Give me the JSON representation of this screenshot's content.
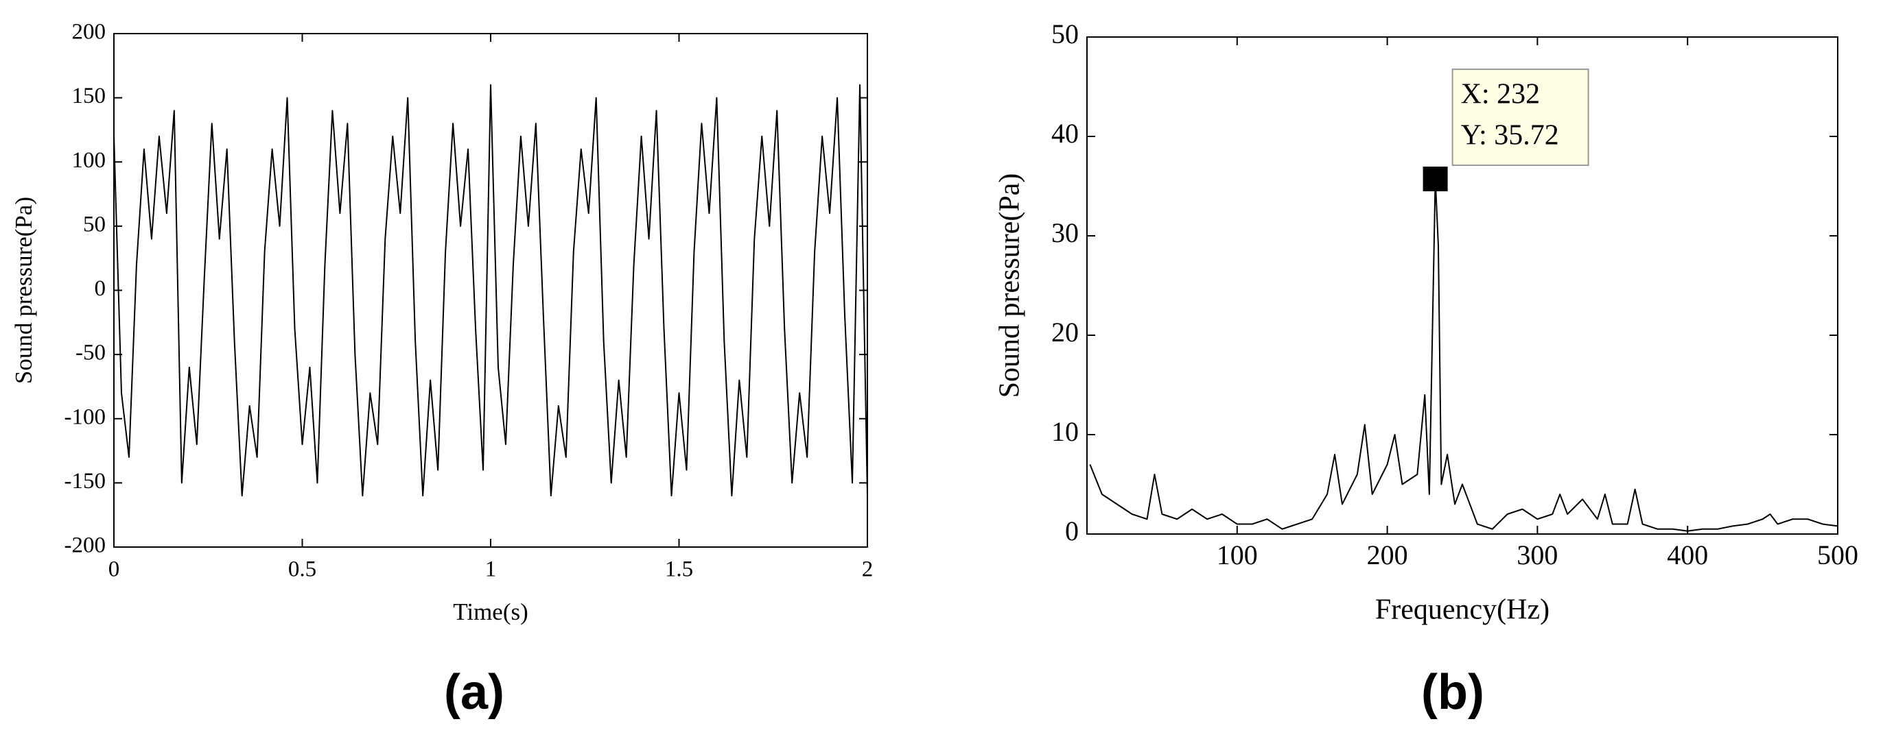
{
  "chart_data": [
    {
      "type": "line",
      "label": "(a)",
      "x_label": "Time(s)",
      "y_label": "Sound pressure(Pa)",
      "color": "#000000",
      "x": [
        0,
        0.02,
        0.04,
        0.06,
        0.08,
        0.1,
        0.12,
        0.14,
        0.16,
        0.18,
        0.2,
        0.22,
        0.24,
        0.26,
        0.28,
        0.3,
        0.32,
        0.34,
        0.36,
        0.38,
        0.4,
        0.42,
        0.44,
        0.46,
        0.48,
        0.5,
        0.52,
        0.54,
        0.56,
        0.58,
        0.6,
        0.62,
        0.64,
        0.66,
        0.68,
        0.7,
        0.72,
        0.74,
        0.76,
        0.78,
        0.8,
        0.82,
        0.84,
        0.86,
        0.88,
        0.9,
        0.92,
        0.94,
        0.96,
        0.98,
        1,
        1.02,
        1.04,
        1.06,
        1.08,
        1.1,
        1.12,
        1.14,
        1.16,
        1.18,
        1.2,
        1.22,
        1.24,
        1.26,
        1.28,
        1.3,
        1.32,
        1.34,
        1.36,
        1.38,
        1.4,
        1.42,
        1.44,
        1.46,
        1.48,
        1.5,
        1.52,
        1.54,
        1.56,
        1.58,
        1.6,
        1.62,
        1.64,
        1.66,
        1.68,
        1.7,
        1.72,
        1.74,
        1.76,
        1.78,
        1.8,
        1.82,
        1.84,
        1.86,
        1.88,
        1.9,
        1.92,
        1.94,
        1.96,
        1.98,
        2
      ],
      "values": [
        120,
        -80,
        -130,
        20,
        110,
        40,
        120,
        60,
        140,
        -150,
        -60,
        -120,
        10,
        130,
        40,
        110,
        -40,
        -160,
        -90,
        -130,
        30,
        110,
        50,
        150,
        -30,
        -120,
        -60,
        -150,
        20,
        140,
        60,
        130,
        -50,
        -160,
        -80,
        -120,
        40,
        120,
        60,
        150,
        -40,
        -160,
        -70,
        -140,
        30,
        130,
        50,
        110,
        -30,
        -140,
        160,
        -60,
        -120,
        20,
        120,
        50,
        130,
        -20,
        -160,
        -90,
        -130,
        30,
        110,
        60,
        150,
        -40,
        -150,
        -70,
        -130,
        20,
        120,
        40,
        140,
        -30,
        -160,
        -80,
        -140,
        30,
        130,
        60,
        150,
        -40,
        -160,
        -70,
        -130,
        40,
        120,
        50,
        140,
        -30,
        -150,
        -80,
        -130,
        30,
        120,
        60,
        150,
        -20,
        -150,
        160,
        -160
      ],
      "xlim": [
        0,
        2
      ],
      "xticks": [
        0,
        0.5,
        1,
        1.5,
        2
      ],
      "ylim": [
        -200,
        200
      ],
      "yticks": [
        -200,
        -150,
        -100,
        -50,
        0,
        50,
        100,
        150,
        200
      ]
    },
    {
      "type": "line",
      "label": "(b)",
      "x_label": "Frequency(Hz)",
      "y_label": "Sound pressure(Pa)",
      "color": "#000000",
      "x": [
        2,
        10,
        20,
        30,
        40,
        45,
        50,
        60,
        70,
        80,
        90,
        100,
        110,
        120,
        130,
        140,
        150,
        160,
        165,
        170,
        180,
        185,
        190,
        200,
        205,
        210,
        220,
        225,
        228,
        232,
        234,
        236,
        240,
        245,
        250,
        260,
        270,
        280,
        290,
        300,
        310,
        315,
        320,
        330,
        340,
        345,
        350,
        360,
        365,
        370,
        380,
        390,
        400,
        410,
        420,
        430,
        440,
        450,
        455,
        460,
        470,
        480,
        490,
        500
      ],
      "values": [
        7,
        4,
        3,
        2,
        1.5,
        6,
        2,
        1.5,
        2.5,
        1.5,
        2,
        1,
        1,
        1.5,
        0.5,
        1,
        1.5,
        4,
        8,
        3,
        6,
        11,
        4,
        7,
        10,
        5,
        6,
        14,
        4,
        35.72,
        29,
        5,
        8,
        3,
        5,
        1,
        0.5,
        2,
        2.5,
        1.5,
        2,
        4,
        2,
        3.5,
        1.5,
        4,
        1,
        1,
        4.5,
        1,
        0.5,
        0.5,
        0.3,
        0.5,
        0.5,
        0.8,
        1,
        1.5,
        2,
        1,
        1.5,
        1.5,
        1,
        0.8
      ],
      "xlim": [
        0,
        500
      ],
      "xticks": [
        100,
        200,
        300,
        400,
        500
      ],
      "ylim": [
        0,
        50
      ],
      "yticks": [
        0,
        10,
        20,
        30,
        40,
        50
      ],
      "annotation": {
        "x": 232,
        "y": 35.72,
        "texts": [
          "X: 232",
          "Y: 35.72"
        ]
      }
    }
  ]
}
